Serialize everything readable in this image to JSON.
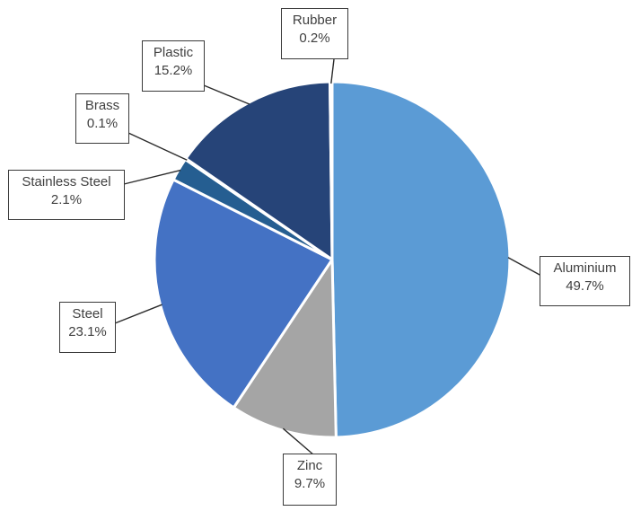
{
  "chart_data": {
    "type": "pie",
    "title": "",
    "start_angle_deg": 90,
    "direction": "clockwise",
    "legend": "none",
    "slices": [
      {
        "label": "Aluminium",
        "value": 49.7,
        "value_label": "49.7%",
        "color": "#5b9bd5"
      },
      {
        "label": "Zinc",
        "value": 9.7,
        "value_label": "9.7%",
        "color": "#a5a5a5"
      },
      {
        "label": "Steel",
        "value": 23.1,
        "value_label": "23.1%",
        "color": "#4472c4"
      },
      {
        "label": "Stainless Steel",
        "value": 2.1,
        "value_label": "2.1%",
        "color": "#255e91"
      },
      {
        "label": "Brass",
        "value": 0.1,
        "value_label": "0.1%",
        "color": "#9e480e"
      },
      {
        "label": "Plastic",
        "value": 15.2,
        "value_label": "15.2%",
        "color": "#264478"
      },
      {
        "label": "Rubber",
        "value": 0.2,
        "value_label": "0.2%",
        "color": "#636363"
      }
    ]
  }
}
